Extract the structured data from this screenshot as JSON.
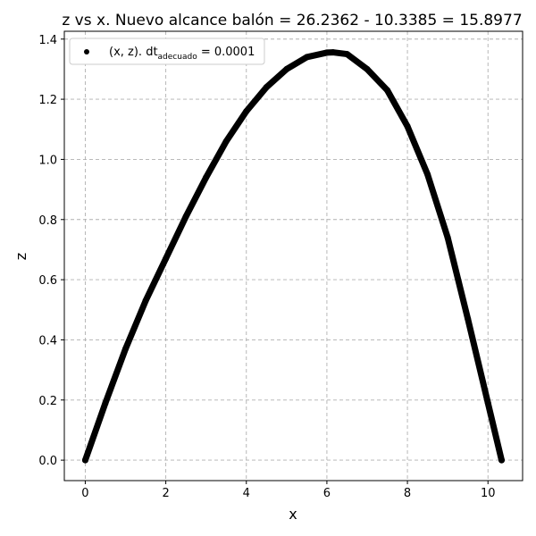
{
  "chart_data": {
    "type": "scatter",
    "title": "z vs x. Nuevo alcance balón = 26.2362 - 10.3385 = 15.8977",
    "xlabel": "x",
    "ylabel": "z",
    "xlim": [
      -0.52,
      10.86
    ],
    "ylim": [
      -0.068,
      1.426
    ],
    "xticks": [
      0,
      2,
      4,
      6,
      8,
      10
    ],
    "yticks": [
      0.0,
      0.2,
      0.4,
      0.6,
      0.8,
      1.0,
      1.2,
      1.4
    ],
    "xtick_labels": [
      "0",
      "2",
      "4",
      "6",
      "8",
      "10"
    ],
    "ytick_labels": [
      "0.0",
      "0.2",
      "0.4",
      "0.6",
      "0.8",
      "1.0",
      "1.2",
      "1.4"
    ],
    "grid": true,
    "legend_position": "top-left",
    "series": [
      {
        "name": "(x, z). dt_adecuado = 0.0001",
        "legend_main": "(x, z). dt",
        "legend_sub": "adecuado",
        "legend_tail": " = 0.0001",
        "color": "#000000",
        "marker": "circle",
        "x": [
          0.0,
          0.5,
          1.0,
          1.5,
          2.0,
          2.5,
          3.0,
          3.5,
          4.0,
          4.5,
          5.0,
          5.5,
          6.0,
          6.15,
          6.5,
          7.0,
          7.5,
          8.0,
          8.5,
          9.0,
          9.5,
          10.0,
          10.3385
        ],
        "y": [
          0.0,
          0.19,
          0.37,
          0.53,
          0.67,
          0.81,
          0.94,
          1.06,
          1.16,
          1.24,
          1.3,
          1.34,
          1.355,
          1.356,
          1.35,
          1.3,
          1.23,
          1.11,
          0.95,
          0.74,
          0.47,
          0.19,
          0.0
        ]
      }
    ]
  }
}
